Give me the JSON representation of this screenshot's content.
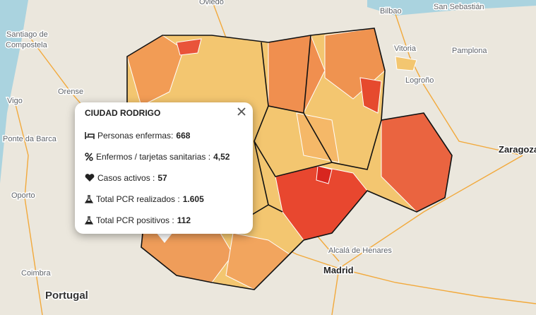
{
  "map": {
    "labels": [
      {
        "text": "Oviedo"
      },
      {
        "text": "Bilbao"
      },
      {
        "text": "San Sebastián"
      },
      {
        "text": "Santiago de"
      },
      {
        "text": "Compostela"
      },
      {
        "text": "Vitoria"
      },
      {
        "text": "Pamplona"
      },
      {
        "text": "Logroño"
      },
      {
        "text": "Orense"
      },
      {
        "text": "Vigo"
      },
      {
        "text": "Ponte da Barca"
      },
      {
        "text": "Zaragoza"
      },
      {
        "text": "Oporto"
      },
      {
        "text": "Alcalá de Henares"
      },
      {
        "text": "Madrid"
      },
      {
        "text": "Coimbra"
      },
      {
        "text": "Portugal"
      }
    ]
  },
  "popup": {
    "title": "CIUDAD RODRIGO",
    "rows": [
      {
        "label": "Personas enfermas:",
        "value": "668"
      },
      {
        "label": "Enfermos / tarjetas sanitarias :",
        "value": "4,52"
      },
      {
        "label": "Casos activos :",
        "value": "57"
      },
      {
        "label": "Total PCR realizados :",
        "value": "1.605"
      },
      {
        "label": "Total PCR positivos :",
        "value": "112"
      }
    ]
  }
}
